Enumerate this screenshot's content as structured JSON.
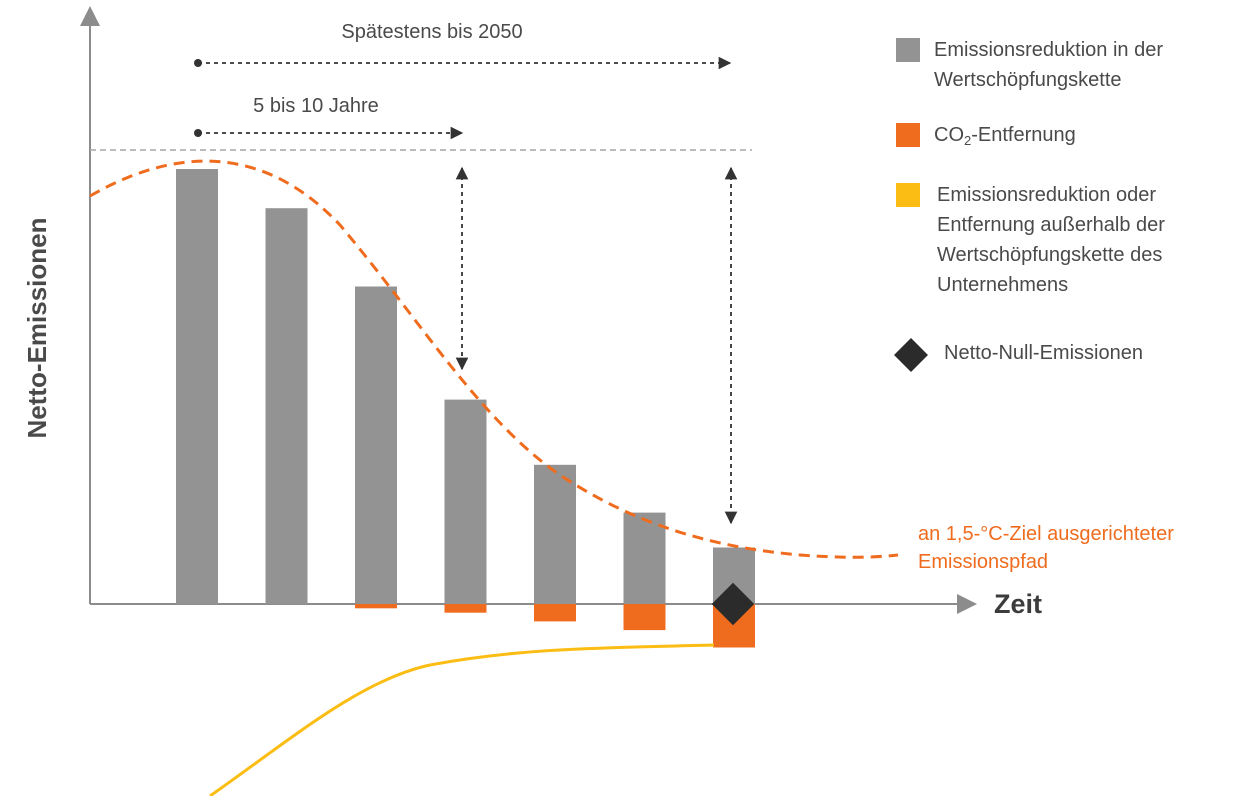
{
  "colors": {
    "gray_bar": "#939393",
    "orange": "#ef6c1e",
    "yellow": "#fbbd13",
    "diamond": "#2b2b2b",
    "axis": "#8c8c8c",
    "text": "#4a4a4a",
    "arrow": "#333333"
  },
  "axes": {
    "y_label": "Netto-Emissionen",
    "x_label": "Zeit"
  },
  "annotations": {
    "span_long": "Spätestens bis 2050",
    "span_short": "5 bis 10 Jahre",
    "pathway_label_line1": "an 1,5-°C-Ziel ausgerichteter",
    "pathway_label_line2": "Emissionspfad"
  },
  "legend": {
    "value_chain_reduction": {
      "line1": "Emissionsreduktion in der",
      "line2": "Wertschöpfungskette"
    },
    "co2_removal": {
      "prefix": "CO",
      "subscript": "2",
      "suffix": "-Entfernung"
    },
    "outside_value_chain": {
      "line1": "Emissionsreduktion oder",
      "line2": "Entfernung außerhalb der",
      "line3": "Wertschöpfungskette des",
      "line4": "Unternehmens"
    },
    "net_zero": {
      "label": "Netto-Null-Emissionen"
    }
  },
  "chart_data": {
    "type": "bar",
    "series": [
      {
        "values": [
          100,
          91,
          73,
          47,
          32,
          21,
          13
        ]
      },
      {
        "values": [
          0,
          0,
          -1,
          -2,
          -4,
          -6,
          -10
        ]
      }
    ],
    "pathway": [
      109,
      103,
      82,
      53,
      28,
      14,
      8,
      5,
      5
    ]
  }
}
